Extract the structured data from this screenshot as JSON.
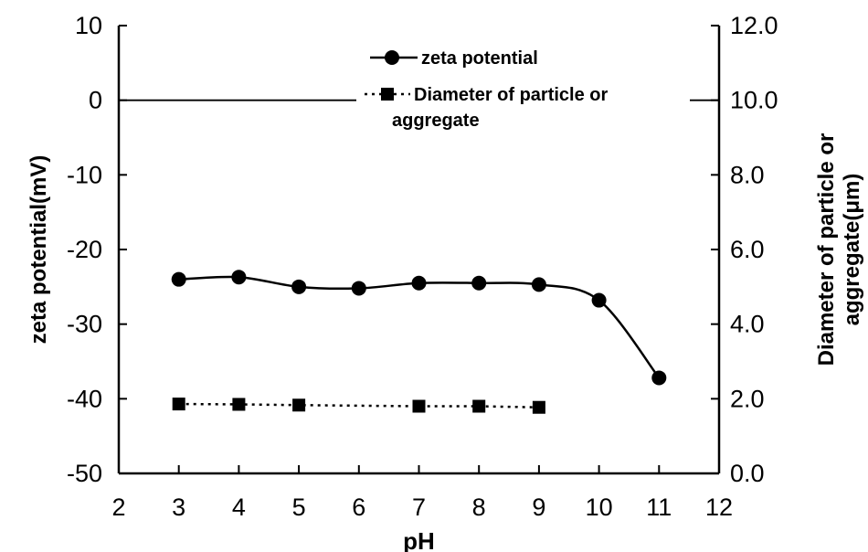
{
  "chart_data": {
    "type": "line",
    "xlabel": "pH",
    "ylabel_left": "zeta potential(mV)",
    "ylabel_right": [
      "Diameter of particle or",
      "aggregate(μm)"
    ],
    "x_ticks": [
      "2",
      "3",
      "4",
      "5",
      "6",
      "7",
      "8",
      "9",
      "10",
      "11",
      "12"
    ],
    "y_left_ticks": [
      "10",
      "0",
      "-10",
      "-20",
      "-30",
      "-40",
      "-50"
    ],
    "y_right_ticks": [
      "12.0",
      "10.0",
      "8.0",
      "6.0",
      "4.0",
      "2.0",
      "0.0"
    ],
    "xlim": [
      2,
      12
    ],
    "ylim_left": [
      -50,
      10
    ],
    "ylim_right": [
      0,
      12
    ],
    "legend_position": "top-center",
    "legend": [
      {
        "label": "zeta potential"
      },
      {
        "label_lines": [
          "Diameter of particle or",
          "aggregate"
        ]
      }
    ],
    "series": [
      {
        "name": "zeta potential",
        "axis": "left",
        "marker": "circle",
        "line": "solid",
        "smooth": true,
        "x": [
          3,
          4,
          5,
          6,
          7,
          8,
          9,
          10,
          11
        ],
        "y": [
          -24.0,
          -23.7,
          -25.0,
          -25.2,
          -24.5,
          -24.5,
          -24.7,
          -26.8,
          -37.2
        ]
      },
      {
        "name": "Diameter of particle or aggregate",
        "axis": "right",
        "marker": "square",
        "line": "dotted",
        "smooth": false,
        "x": [
          3,
          4,
          5,
          7,
          8,
          9
        ],
        "y": [
          1.86,
          1.85,
          1.83,
          1.8,
          1.8,
          1.77
        ]
      }
    ],
    "reference_line": {
      "axis": "left",
      "y": 0
    }
  }
}
